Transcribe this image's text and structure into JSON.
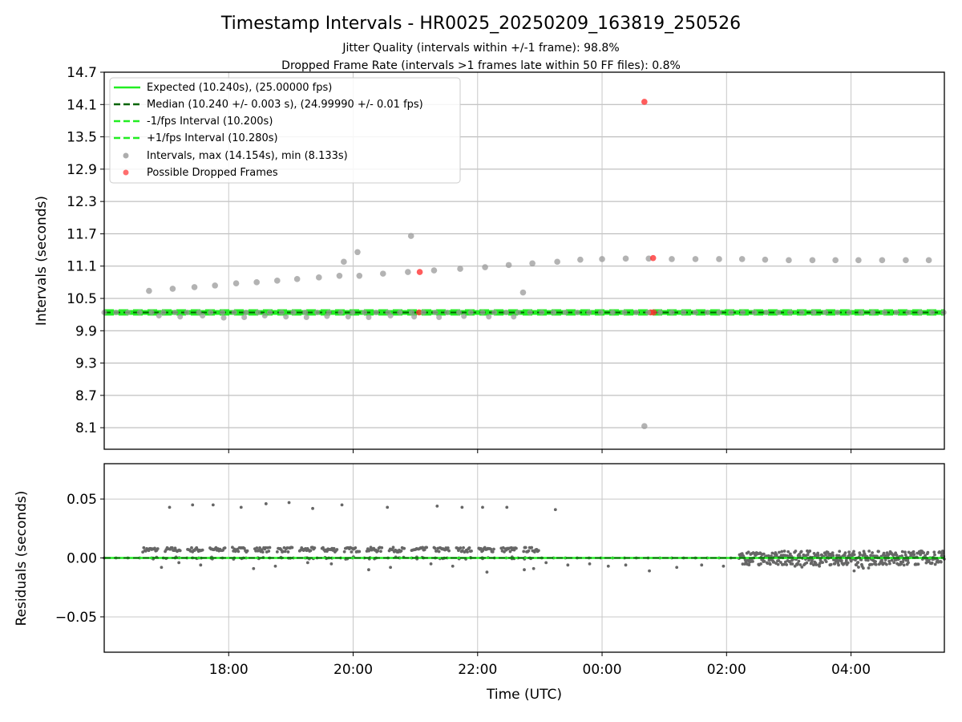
{
  "chart_data": [
    {
      "type": "scatter",
      "title": "Timestamp Intervals - HR0025_20250209_163819_250526",
      "subtitle_lines": [
        "Jitter Quality (intervals within +/-1 frame): 98.8%",
        "Dropped Frame Rate (intervals >1 frames late within 50 FF files): 0.8%"
      ],
      "ylabel": "Intervals (seconds)",
      "xlim_hours": [
        16.0,
        29.5
      ],
      "ylim": [
        7.7,
        14.7
      ],
      "yticks": [
        8.1,
        8.7,
        9.3,
        9.9,
        10.5,
        11.1,
        11.7,
        12.3,
        12.9,
        13.5,
        14.1,
        14.7
      ],
      "ytick_labels": [
        "8.1",
        "8.7",
        "9.3",
        "9.9",
        "10.5",
        "11.1",
        "11.7",
        "12.3",
        "12.9",
        "13.5",
        "14.1",
        "14.7"
      ],
      "grid": true,
      "legend_position": "upper-left",
      "legend": [
        {
          "label": "Expected (10.240s), (25.00000 fps)",
          "style": "solid",
          "color": "#22ee22"
        },
        {
          "label": "Median (10.240 +/- 0.003 s), (24.99990 +/- 0.01 fps)",
          "style": "dashed",
          "color": "#006400"
        },
        {
          "label": "-1/fps Interval (10.200s)",
          "style": "dashed",
          "color": "#22ee22"
        },
        {
          "label": "+1/fps Interval (10.280s)",
          "style": "dashed",
          "color": "#22ee22"
        },
        {
          "label": "Intervals, max (14.154s), min (8.133s)",
          "style": "marker",
          "color": "#999999"
        },
        {
          "label": "Possible Dropped Frames",
          "style": "marker",
          "color": "#ff5555"
        }
      ],
      "lines": {
        "expected": 10.24,
        "median": 10.24,
        "minus_fps": 10.2,
        "plus_fps": 10.28
      },
      "upper_intervals": {
        "x_hours": [
          16.72,
          17.1,
          17.45,
          17.78,
          18.12,
          18.45,
          18.78,
          19.1,
          19.45,
          19.78,
          20.1,
          20.48,
          20.88,
          21.3,
          21.72,
          22.12,
          22.5,
          22.88,
          23.28,
          23.65,
          24.0,
          24.38,
          24.75,
          25.12,
          25.5,
          25.88,
          26.25,
          26.62,
          27.0,
          27.38,
          27.75,
          28.12,
          28.5,
          28.88,
          29.25
        ],
        "values": [
          10.64,
          10.68,
          10.71,
          10.74,
          10.78,
          10.8,
          10.83,
          10.86,
          10.89,
          10.92,
          10.92,
          10.96,
          10.99,
          11.02,
          11.05,
          11.08,
          11.12,
          11.15,
          11.18,
          11.22,
          11.23,
          11.24,
          11.24,
          11.23,
          11.23,
          11.23,
          11.23,
          11.22,
          11.21,
          11.21,
          11.21,
          11.21,
          11.21,
          11.21,
          11.21
        ]
      },
      "extra_intervals": {
        "x_hours": [
          19.85,
          20.07,
          20.93,
          22.73,
          24.68
        ],
        "values": [
          11.18,
          11.36,
          11.66,
          10.61,
          8.13
        ]
      },
      "baseline_intervals": {
        "x_start_hours": 16.0,
        "x_end_hours": 29.5,
        "x_step_hours": 0.19,
        "value": 10.24
      },
      "small_low_intervals": {
        "x_hours": [
          16.88,
          17.22,
          17.58,
          17.92,
          18.25,
          18.58,
          18.92,
          19.25,
          19.58,
          19.92,
          20.25,
          20.6,
          20.98,
          21.38,
          21.78,
          22.18,
          22.58
        ],
        "values": [
          10.18,
          10.16,
          10.18,
          10.14,
          10.15,
          10.18,
          10.16,
          10.15,
          10.17,
          10.16,
          10.15,
          10.18,
          10.16,
          10.15,
          10.17,
          10.16,
          10.16
        ]
      },
      "dropped_frames": {
        "x_hours": [
          24.68,
          24.82,
          21.07,
          21.06,
          24.78,
          24.83
        ],
        "values": [
          14.15,
          11.25,
          10.99,
          10.24,
          10.24,
          10.24
        ]
      }
    },
    {
      "type": "scatter",
      "xlabel": "Time (UTC)",
      "ylabel": "Residuals (seconds)",
      "xlim_hours": [
        16.0,
        29.5
      ],
      "ylim": [
        -0.08,
        0.08
      ],
      "yticks": [
        -0.05,
        0.0,
        0.05
      ],
      "ytick_labels": [
        "−0.05",
        "0.00",
        "0.05"
      ],
      "xticks_hours": [
        18,
        20,
        22,
        24,
        26,
        28
      ],
      "xtick_labels": [
        "18:00",
        "20:00",
        "22:00",
        "00:00",
        "02:00",
        "04:00"
      ],
      "grid": true,
      "zero_line": {
        "value": 0.0,
        "color": "#006400",
        "style": "dashed"
      },
      "outliers": {
        "x_hours": [
          17.05,
          17.42,
          17.75,
          18.2,
          18.6,
          18.97,
          19.35,
          19.82,
          20.55,
          21.35,
          21.75,
          22.08,
          22.47,
          23.25,
          16.92,
          17.2,
          17.55,
          18.4,
          18.75,
          19.27,
          19.65,
          20.25,
          20.6,
          21.25,
          21.6,
          22.15,
          22.75,
          22.9,
          23.1,
          23.45,
          23.8,
          24.1,
          24.38,
          24.76,
          25.2,
          25.6,
          25.95,
          26.55,
          27.1,
          27.8,
          28.05
        ],
        "values": [
          0.043,
          0.045,
          0.045,
          0.043,
          0.046,
          0.047,
          0.042,
          0.045,
          0.043,
          0.044,
          0.043,
          0.043,
          0.043,
          0.041,
          -0.008,
          -0.004,
          -0.006,
          -0.009,
          -0.007,
          -0.004,
          -0.005,
          -0.01,
          -0.008,
          -0.005,
          -0.007,
          -0.012,
          -0.01,
          -0.009,
          -0.004,
          -0.006,
          -0.005,
          -0.007,
          -0.006,
          -0.011,
          -0.008,
          -0.006,
          -0.007,
          -0.005,
          -0.007,
          -0.006,
          -0.011
        ]
      },
      "clusters": {
        "x_start_hours": [
          16.62,
          16.98,
          17.34,
          17.7,
          18.06,
          18.42,
          18.78,
          19.14,
          19.5,
          19.86,
          20.22,
          20.58,
          20.94,
          21.3,
          21.66,
          22.02,
          22.38,
          22.74
        ],
        "x_width_hours": 0.24,
        "value": 0.007
      },
      "dense_noise": {
        "x_start_hours": 26.2,
        "x_end_hours": 29.5,
        "amplitude": 0.006
      }
    }
  ]
}
